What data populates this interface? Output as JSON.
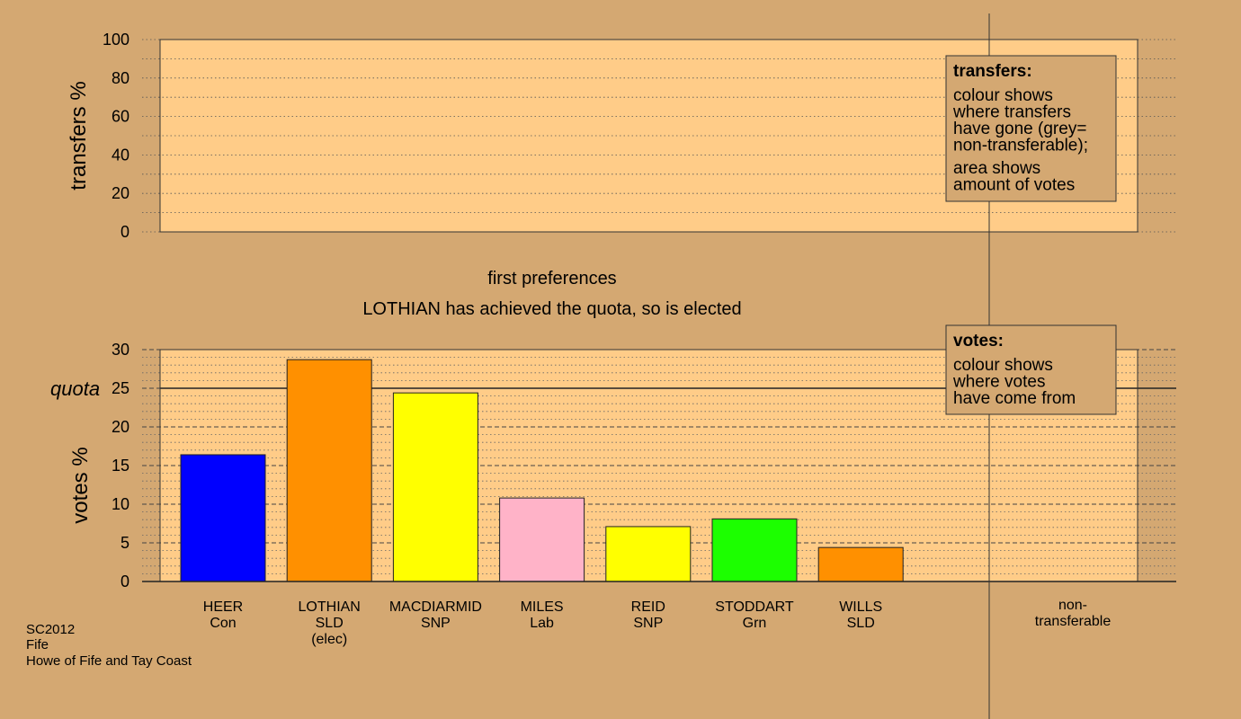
{
  "colors": {
    "background": "#d4a872",
    "panel": "#ffcc88",
    "legend_box": "#d4a872"
  },
  "chart_data": [
    {
      "type": "bar",
      "panel": "transfers",
      "ylabel": "transfers %",
      "ylim": [
        0,
        100
      ],
      "yticks": [
        0,
        20,
        40,
        60,
        80,
        100
      ],
      "grid": true,
      "categories": [],
      "values": [],
      "legend": {
        "title": "transfers:",
        "lines_1": [
          "colour shows",
          "where transfers",
          "have gone (grey=",
          "non-transferable);"
        ],
        "lines_2": [
          "area shows",
          "amount of votes"
        ]
      }
    },
    {
      "type": "bar",
      "panel": "votes",
      "title": "first preferences",
      "subtitle": "LOTHIAN has achieved the quota, so is elected",
      "ylabel": "votes %",
      "ylim": [
        0,
        30
      ],
      "yticks": [
        0,
        5,
        10,
        15,
        20,
        25,
        30
      ],
      "quota": 25,
      "quota_label": "quota",
      "grid": true,
      "categories": [
        {
          "name": "HEER",
          "party": "Con",
          "note": ""
        },
        {
          "name": "LOTHIAN",
          "party": "SLD",
          "note": "(elec)"
        },
        {
          "name": "MACDIARMID",
          "party": "SNP",
          "note": ""
        },
        {
          "name": "MILES",
          "party": "Lab",
          "note": ""
        },
        {
          "name": "REID",
          "party": "SNP",
          "note": ""
        },
        {
          "name": "STODDART",
          "party": "Grn",
          "note": ""
        },
        {
          "name": "WILLS",
          "party": "SLD",
          "note": ""
        }
      ],
      "values": [
        16.4,
        28.7,
        24.4,
        10.8,
        7.1,
        8.1,
        4.4
      ],
      "bar_colors": [
        "#0000ff",
        "#ff9000",
        "#ffff00",
        "#ffb3c8",
        "#ffff00",
        "#1cff00",
        "#ff9000"
      ],
      "nontransferable_label": [
        "non-",
        "transferable"
      ],
      "legend": {
        "title": "votes:",
        "lines": [
          "colour shows",
          "where votes",
          "have come from"
        ]
      }
    }
  ],
  "footer": {
    "election": "SC2012",
    "council": "Fife",
    "ward": "Howe of Fife and Tay Coast"
  }
}
